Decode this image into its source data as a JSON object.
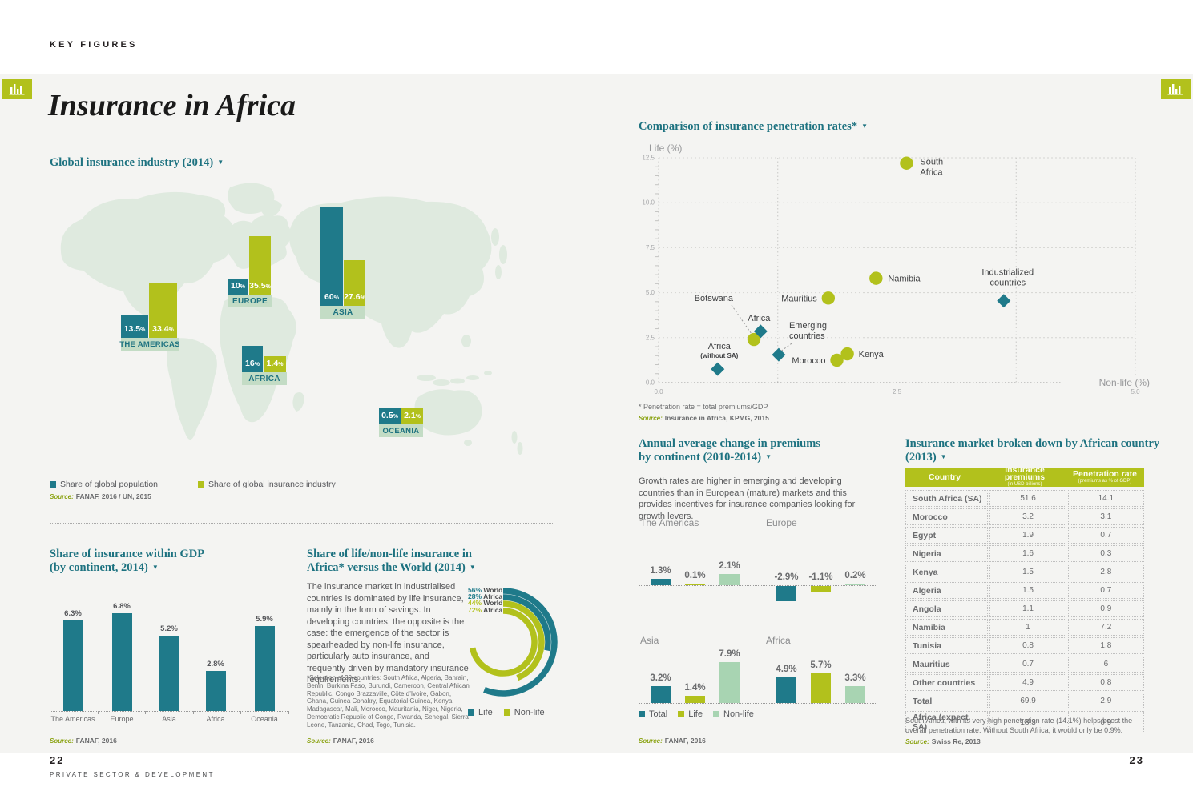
{
  "icons": {
    "triangle": "▼"
  },
  "colors": {
    "teal": "#1F7A8A",
    "chartreuse": "#B2C11C",
    "pale_green": "#A8D4B2",
    "map_green": "#DFEADF",
    "band_green": "#C3DCC5",
    "panel": "#F4F4F2",
    "heading_teal": "#1D7280",
    "source_olive": "#8BA313"
  },
  "page": {
    "eyebrow": "KEY FIGURES",
    "title": "Insurance in Africa",
    "footer_left_number": "22",
    "footer_left_text": "PRIVATE SECTOR & DEVELOPMENT",
    "footer_right_number": "23"
  },
  "global_industry": {
    "heading": "Global insurance industry (2014)",
    "legend": [
      {
        "label": "Share of global population",
        "series": "population"
      },
      {
        "label": "Share of global insurance industry",
        "series": "insurance"
      }
    ],
    "source_label": "Source:",
    "source": "FANAF, 2016 / UN, 2015",
    "chart_data": {
      "type": "bar",
      "unit": "%",
      "series": [
        {
          "key": "population",
          "name": "Share of global population"
        },
        {
          "key": "insurance",
          "name": "Share of global insurance industry"
        }
      ],
      "groups": [
        {
          "name": "THE AMERICAS",
          "population": 13.5,
          "insurance": 33.4
        },
        {
          "name": "EUROPE",
          "population": 10,
          "insurance": 35.5
        },
        {
          "name": "ASIA",
          "population": 60,
          "insurance": 27.6
        },
        {
          "name": "AFRICA",
          "population": 16,
          "insurance": 1.4
        },
        {
          "name": "OCEANIA",
          "population": 0.5,
          "insurance": 2.1
        }
      ]
    }
  },
  "gdp_share": {
    "heading_line1": "Share of insurance within GDP",
    "heading_line2": "(by continent, 2014)",
    "source_label": "Source:",
    "source": "FANAF, 2016",
    "chart_data": {
      "type": "bar",
      "unit": "%",
      "categories": [
        "The Americas",
        "Europe",
        "Asia",
        "Africa",
        "Oceania"
      ],
      "values": [
        6.3,
        6.8,
        5.2,
        2.8,
        5.9
      ]
    }
  },
  "life_nonlife": {
    "heading_line1": "Share of life/non-life insurance in",
    "heading_line2": "Africa* versus the World (2014)",
    "body": "The insurance market in industrialised countries is dominated by life insurance, mainly in the form of savings. In developing countries, the opposite is the case: the emergence of the sector is spearheaded by non-life insurance, particularly auto insurance, and frequently driven by mandatory insurance requirements.",
    "footnote": "*Selection of 29 countries: South Africa, Algeria, Bahrain, Benin, Burkina Faso, Burundi, Cameroon, Central African Republic, Congo Brazzaville, Côte d’Ivoire, Gabon, Ghana, Guinea Conakry, Equatorial Guinea, Kenya, Madagascar, Mali, Morocco, Mauritania, Niger, Nigeria, Democratic Republic of Congo, Rwanda, Senegal, Sierra Leone, Tanzania, Chad, Togo, Tunisia.",
    "source_label": "Source:",
    "source": "FANAF, 2016",
    "chart_data": {
      "type": "donut-arcs",
      "arcs": [
        {
          "pct": 56,
          "scope": "World",
          "series": "Life"
        },
        {
          "pct": 28,
          "scope": "Africa",
          "series": "Life"
        },
        {
          "pct": 44,
          "scope": "World",
          "series": "Non-life"
        },
        {
          "pct": 72,
          "scope": "Africa",
          "series": "Non-life"
        }
      ],
      "legend": [
        "Life",
        "Non-life"
      ]
    }
  },
  "penetration": {
    "heading": "Comparison of insurance penetration rates*",
    "ylabel": "Life (%)",
    "xlabel": "Non-life (%)",
    "footnote": "* Penetration rate = total premiums/GDP.",
    "source_label": "Source:",
    "source": "Insurance in Africa, KPMG, 2015",
    "chart_data": {
      "type": "scatter",
      "xlim": [
        0,
        5
      ],
      "ylim": [
        0,
        12.5
      ],
      "xticks": [
        "0.0",
        "2.5",
        "5.0"
      ],
      "yticks": [
        "0.0",
        "2.5",
        "5.0",
        "7.5",
        "10.0",
        "12.5"
      ],
      "points": [
        {
          "name": "South Africa",
          "label_lines": [
            "South",
            "Africa"
          ],
          "x": 2.6,
          "y": 12.2,
          "marker": "circle"
        },
        {
          "name": "Namibia",
          "label_lines": [
            "Namibia"
          ],
          "x": 2.28,
          "y": 5.8,
          "marker": "circle"
        },
        {
          "name": "Mauritius",
          "label_lines": [
            "Mauritius"
          ],
          "x": 1.78,
          "y": 4.7,
          "marker": "circle"
        },
        {
          "name": "Botswana",
          "label_lines": [
            "Botswana"
          ],
          "x": 1.0,
          "y": 2.4,
          "marker": "circle"
        },
        {
          "name": "Africa",
          "label_lines": [
            "Africa"
          ],
          "x": 1.07,
          "y": 2.85,
          "marker": "diamond"
        },
        {
          "name": "Emerging countries",
          "label_lines": [
            "Emerging",
            "countries"
          ],
          "x": 1.26,
          "y": 1.55,
          "marker": "diamond"
        },
        {
          "name": "Morocco",
          "label_lines": [
            "Morocco"
          ],
          "x": 1.87,
          "y": 1.25,
          "marker": "circle"
        },
        {
          "name": "Kenya",
          "label_lines": [
            "Kenya"
          ],
          "x": 1.98,
          "y": 1.6,
          "marker": "circle"
        },
        {
          "name": "Africa (without SA)",
          "label_lines": [
            "Africa",
            "(without SA)"
          ],
          "x": 0.62,
          "y": 0.75,
          "marker": "diamond"
        },
        {
          "name": "Industrialized countries",
          "label_lines": [
            "Industrialized",
            "countries"
          ],
          "x": 3.62,
          "y": 4.55,
          "marker": "diamond"
        }
      ]
    }
  },
  "premiums": {
    "heading_line1": "Annual average change in premiums",
    "heading_line2": "by continent (2010-2014)",
    "body": "Growth rates are higher in emerging and developing countries than in European (mature) markets and this provides incentives for insurance companies looking for growth levers.",
    "legend": [
      "Total",
      "Life",
      "Non-life"
    ],
    "source_label": "Source:",
    "source": "FANAF, 2016",
    "chart_data": {
      "type": "bar",
      "unit": "%",
      "series": [
        "Total",
        "Life",
        "Non-life"
      ],
      "groups": [
        {
          "name": "The Americas",
          "values": [
            1.3,
            0.1,
            2.1
          ]
        },
        {
          "name": "Europe",
          "values": [
            -2.9,
            -1.1,
            0.2
          ]
        },
        {
          "name": "Asia",
          "values": [
            3.2,
            1.4,
            7.9
          ]
        },
        {
          "name": "Africa",
          "values": [
            4.9,
            5.7,
            3.3
          ]
        }
      ]
    }
  },
  "market_table": {
    "heading_line1": "Insurance market broken down by African country",
    "heading_line2": "(2013)",
    "columns": [
      {
        "label": "Country",
        "sub": ""
      },
      {
        "label": "Insurance premiums",
        "sub": "(in USD billions)"
      },
      {
        "label": "Penetration rate",
        "sub": "(premiums as % of GDP)"
      }
    ],
    "rows": [
      [
        "South Africa (SA)",
        "51.6",
        "14.1"
      ],
      [
        "Morocco",
        "3.2",
        "3.1"
      ],
      [
        "Egypt",
        "1.9",
        "0.7"
      ],
      [
        "Nigeria",
        "1.6",
        "0.3"
      ],
      [
        "Kenya",
        "1.5",
        "2.8"
      ],
      [
        "Algeria",
        "1.5",
        "0.7"
      ],
      [
        "Angola",
        "1.1",
        "0.9"
      ],
      [
        "Namibia",
        "1",
        "7.2"
      ],
      [
        "Tunisia",
        "0.8",
        "1.8"
      ],
      [
        "Mauritius",
        "0.7",
        "6"
      ],
      [
        "Other countries",
        "4.9",
        "0.8"
      ],
      [
        "Total",
        "69.9",
        "2.9"
      ],
      [
        "Africa (expect. SA)",
        "18.3",
        "0.9"
      ]
    ],
    "note": "South Africa, with its very high penetration rate (14.1%) helps boost the overall penetration rate. Without South Africa, it would only be 0.9%.",
    "source_label": "Source:",
    "source": "Swiss Re, 2013"
  }
}
